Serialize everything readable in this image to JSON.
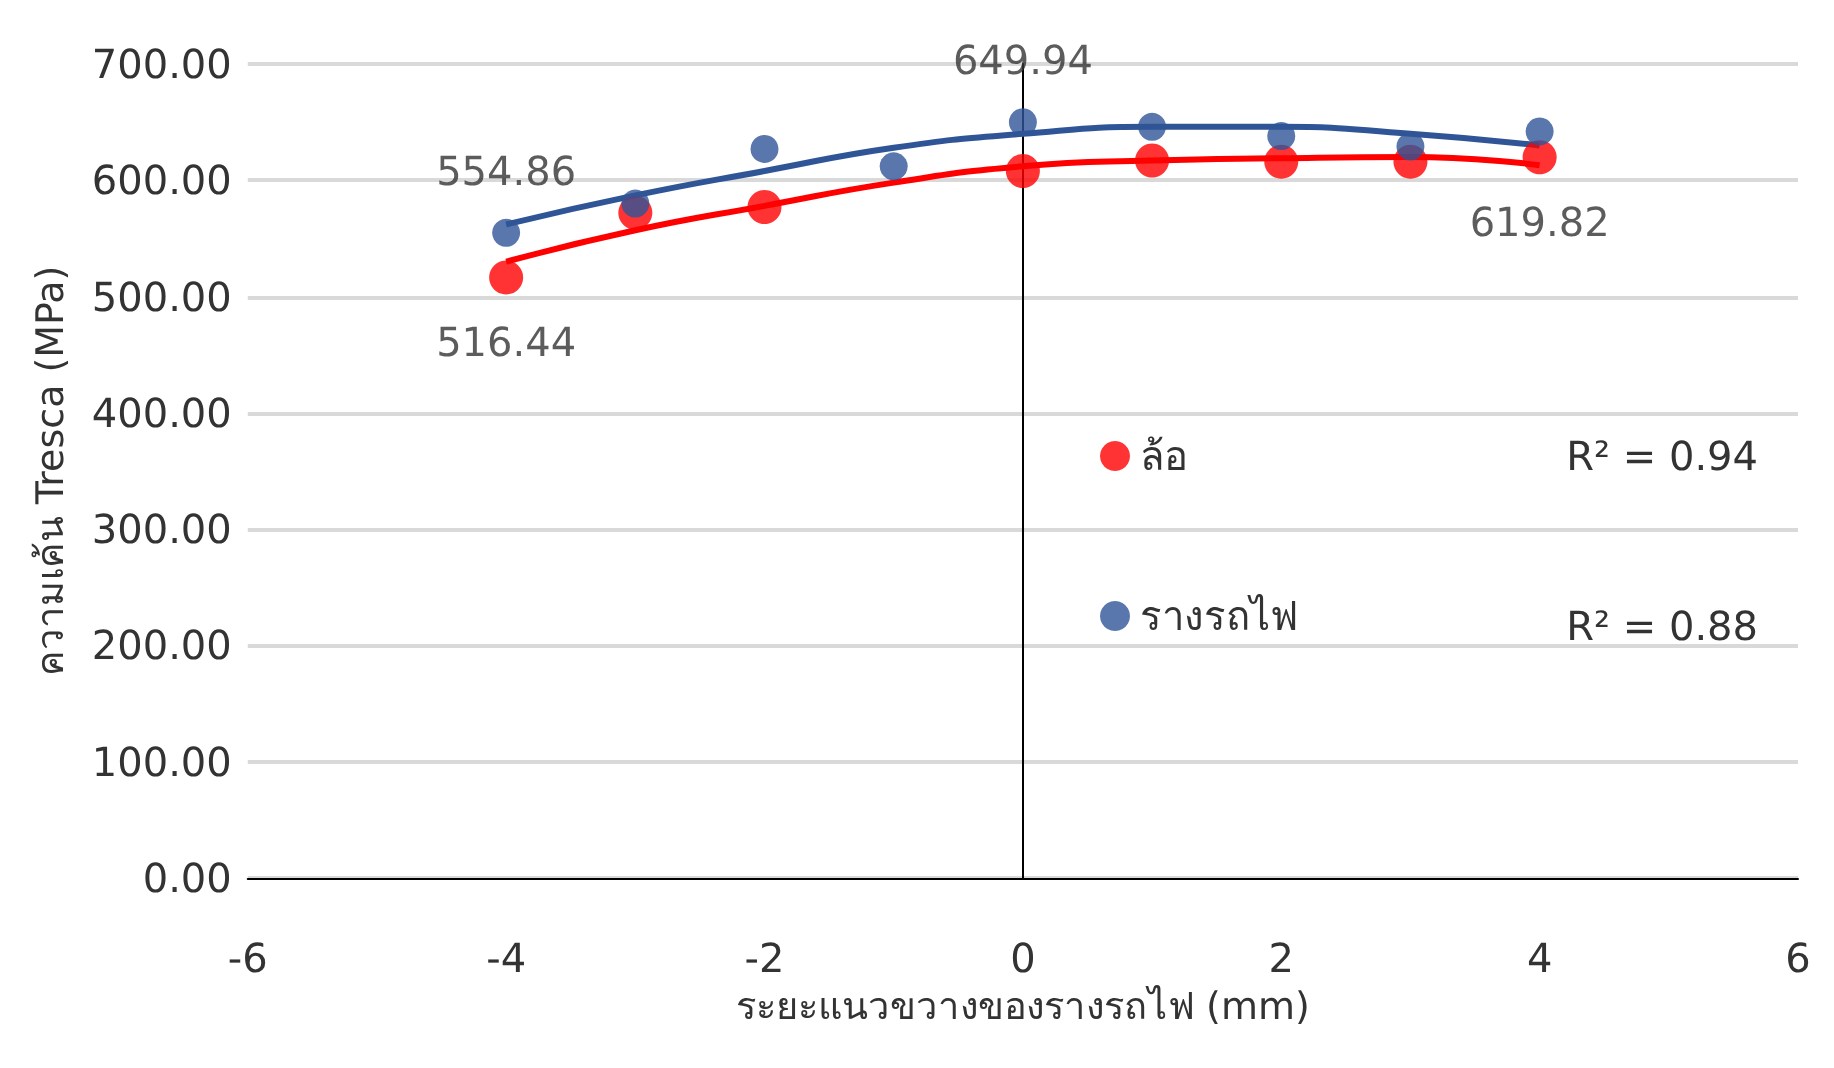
{
  "chart_data": {
    "type": "scatter",
    "xlabel": "ระยะแนวขวางของรางรถไฟ (mm)",
    "ylabel": "ความเค้น Tresca (MPa)",
    "xlim": [
      -6,
      6
    ],
    "xticks": [
      -6,
      -4,
      -2,
      0,
      2,
      4,
      6
    ],
    "ylim": [
      0,
      700
    ],
    "yticks": [
      {
        "value": 0,
        "label": "0.00"
      },
      {
        "value": 100,
        "label": "100.00"
      },
      {
        "value": 200,
        "label": "200.00"
      },
      {
        "value": 300,
        "label": "300.00"
      },
      {
        "value": 400,
        "label": "400.00"
      },
      {
        "value": 500,
        "label": "500.00"
      },
      {
        "value": 600,
        "label": "600.00"
      },
      {
        "value": 700,
        "label": "700.00"
      }
    ],
    "grid": "y",
    "legend": "right",
    "annotations": [
      "R² = 0.94",
      "R² = 0.88"
    ],
    "series": [
      {
        "name": "ล้อ",
        "color": "#ff0000",
        "marker": "circle",
        "x": [
          -4,
          -3,
          -2,
          -1,
          0,
          1,
          2,
          3,
          4
        ],
        "values": [
          516.44,
          572,
          577,
          null,
          608,
          617,
          616,
          616,
          619.82
        ],
        "value_labels": [
          "516.44",
          null,
          null,
          null,
          null,
          null,
          null,
          null,
          "619.82"
        ]
      },
      {
        "name": "รางรถไฟ",
        "color": "#2f5597",
        "marker": "circle",
        "x": [
          -4,
          -3,
          -2,
          -1,
          0,
          1,
          2,
          3,
          4
        ],
        "values": [
          554.86,
          580,
          627,
          612,
          649.94,
          646,
          638,
          629,
          642
        ],
        "value_labels": [
          "554.86",
          null,
          null,
          null,
          "649.94",
          null,
          null,
          null,
          null
        ]
      },
      {
        "type": "line",
        "color": "#ff0000",
        "marker": "none",
        "x": [
          -4,
          -3,
          -2,
          -1,
          0,
          1,
          2,
          3,
          4
        ],
        "values": [
          530,
          557,
          578,
          598,
          612,
          617,
          619,
          620,
          613
        ]
      },
      {
        "type": "line",
        "color": "#2f5597",
        "marker": "none",
        "x": [
          -4,
          -3,
          -2,
          -1,
          0,
          1,
          2,
          3,
          4
        ],
        "values": [
          562,
          587,
          608,
          628,
          640,
          646,
          646,
          640,
          630
        ]
      }
    ]
  }
}
